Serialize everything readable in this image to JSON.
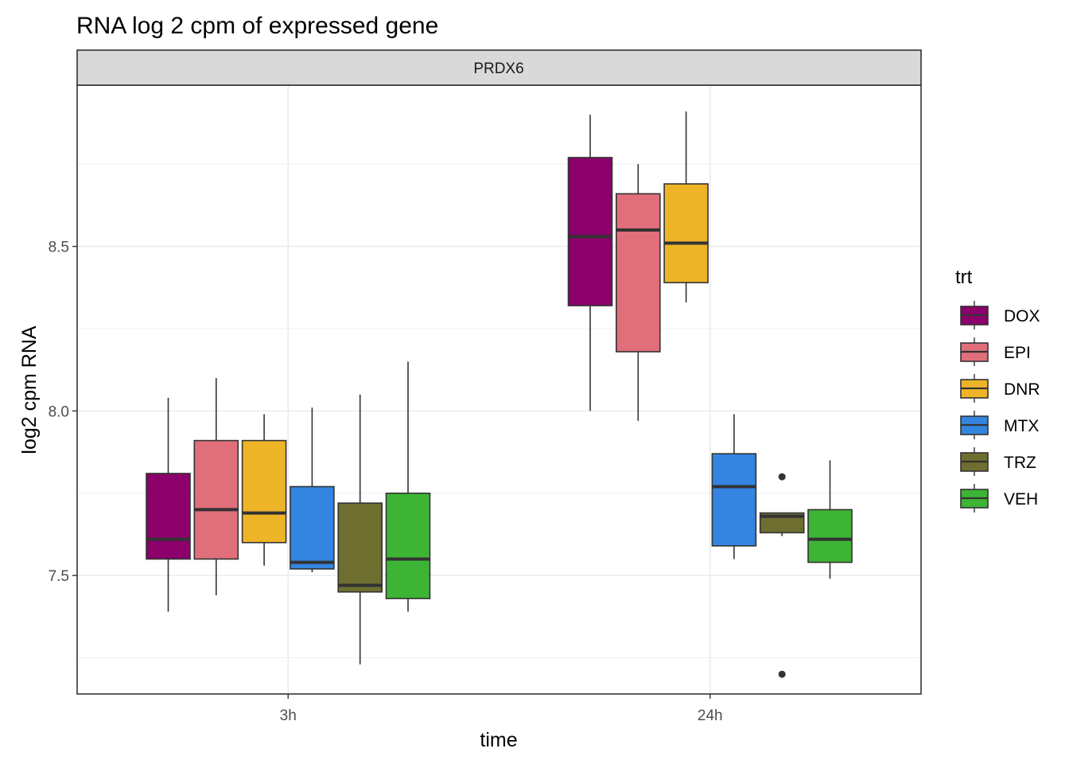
{
  "chart_data": {
    "type": "box",
    "title": "RNA log 2 cpm of expressed gene",
    "facet": "PRDX6",
    "xlabel": "time",
    "ylabel": "log2 cpm RNA",
    "categories": [
      "3h",
      "24h"
    ],
    "y_ticks": [
      "7.5",
      "8.0",
      "8.5"
    ],
    "ylim": [
      7.14,
      8.99
    ],
    "grid": true,
    "legend": {
      "title": "trt",
      "position": "right"
    },
    "series": [
      {
        "name": "DOX",
        "color": "#8B006B",
        "boxes": [
          {
            "x": "3h",
            "min": 7.39,
            "q1": 7.55,
            "median": 7.61,
            "q3": 7.81,
            "max": 8.04,
            "outliers": []
          },
          {
            "x": "24h",
            "min": 8.0,
            "q1": 8.32,
            "median": 8.53,
            "q3": 8.77,
            "max": 8.9,
            "outliers": []
          }
        ]
      },
      {
        "name": "EPI",
        "color": "#E06F7B",
        "boxes": [
          {
            "x": "3h",
            "min": 7.44,
            "q1": 7.55,
            "median": 7.7,
            "q3": 7.91,
            "max": 8.1,
            "outliers": []
          },
          {
            "x": "24h",
            "min": 7.97,
            "q1": 8.18,
            "median": 8.55,
            "q3": 8.66,
            "max": 8.75,
            "outliers": []
          }
        ]
      },
      {
        "name": "DNR",
        "color": "#EEB427",
        "boxes": [
          {
            "x": "3h",
            "min": 7.53,
            "q1": 7.6,
            "median": 7.69,
            "q3": 7.91,
            "max": 7.99,
            "outliers": []
          },
          {
            "x": "24h",
            "min": 8.33,
            "q1": 8.39,
            "median": 8.51,
            "q3": 8.69,
            "max": 8.91,
            "outliers": []
          }
        ]
      },
      {
        "name": "MTX",
        "color": "#3385E0",
        "boxes": [
          {
            "x": "3h",
            "min": 7.51,
            "q1": 7.52,
            "median": 7.54,
            "q3": 7.77,
            "max": 8.01,
            "outliers": []
          },
          {
            "x": "24h",
            "min": 7.55,
            "q1": 7.59,
            "median": 7.77,
            "q3": 7.87,
            "max": 7.99,
            "outliers": []
          }
        ]
      },
      {
        "name": "TRZ",
        "color": "#6E6E31",
        "boxes": [
          {
            "x": "3h",
            "min": 7.23,
            "q1": 7.45,
            "median": 7.47,
            "q3": 7.72,
            "max": 8.05,
            "outliers": []
          },
          {
            "x": "24h",
            "min": 7.62,
            "q1": 7.63,
            "median": 7.68,
            "q3": 7.69,
            "max": 7.69,
            "outliers": [
              7.8,
              7.2
            ]
          }
        ]
      },
      {
        "name": "VEH",
        "color": "#3DB435",
        "boxes": [
          {
            "x": "3h",
            "min": 7.39,
            "q1": 7.43,
            "median": 7.55,
            "q3": 7.75,
            "max": 8.15,
            "outliers": []
          },
          {
            "x": "24h",
            "min": 7.49,
            "q1": 7.54,
            "median": 7.61,
            "q3": 7.7,
            "max": 7.85,
            "outliers": []
          }
        ]
      }
    ]
  }
}
